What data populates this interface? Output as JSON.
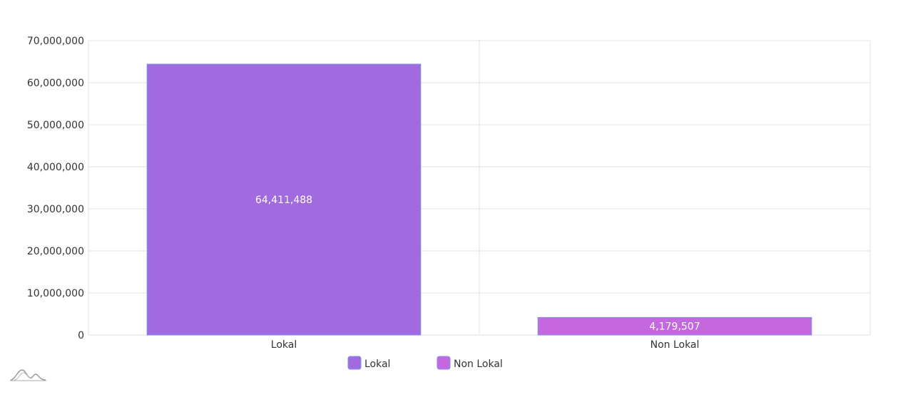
{
  "chart_data": {
    "type": "bar",
    "categories": [
      "Lokal",
      "Non Lokal"
    ],
    "values": [
      64411488,
      4179507
    ],
    "value_labels": [
      "64,411,488",
      "4,179,507"
    ],
    "ylim": [
      0,
      70000000
    ],
    "yticks": [
      0,
      10000000,
      20000000,
      30000000,
      40000000,
      50000000,
      60000000,
      70000000
    ],
    "ytick_labels": [
      "0",
      "10,000,000",
      "20,000,000",
      "30,000,000",
      "40,000,000",
      "50,000,000",
      "60,000,000",
      "70,000,000"
    ],
    "grid": true,
    "legend_position": "bottom",
    "legend": [
      {
        "label": "Lokal",
        "color": "#a16ade"
      },
      {
        "label": "Non Lokal",
        "color": "#c567de"
      }
    ],
    "colors": [
      "#a16ade",
      "#c567de"
    ],
    "bar_border_color": "#7a93f0"
  },
  "watermark_icon": "amcharts-logo-icon"
}
